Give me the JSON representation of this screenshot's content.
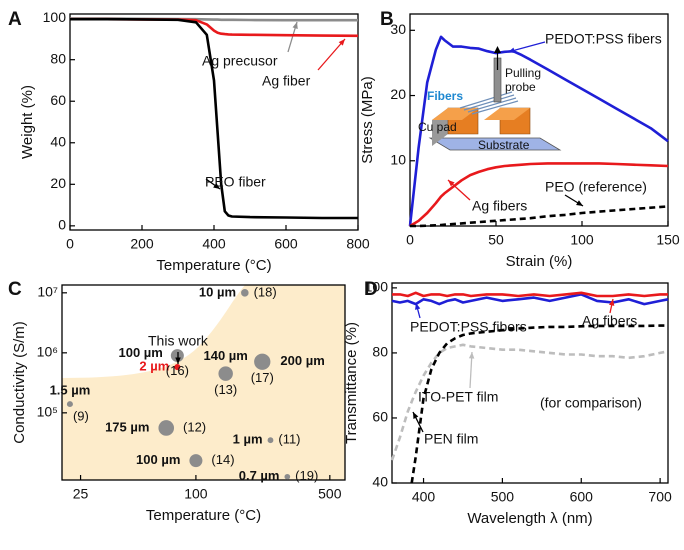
{
  "chart_data": [
    {
      "panel": "A",
      "type": "line",
      "xlabel": "Temperature (°C)",
      "ylabel": "Weight (%)",
      "x": [
        0,
        100,
        200,
        300,
        350,
        380,
        400,
        410,
        420,
        430,
        440,
        450,
        500,
        600,
        700,
        800
      ],
      "series": [
        {
          "name": "Ag precusor",
          "color": "#8c8c8c",
          "style": "solid",
          "values": [
            99.8,
            99.8,
            99.7,
            99.6,
            99.5,
            99.4,
            99.3,
            99.3,
            99.2,
            99.2,
            99.2,
            99.2,
            99.1,
            99.0,
            99.0,
            99.0
          ]
        },
        {
          "name": "Ag fiber",
          "color": "#e8191c",
          "style": "solid",
          "values": [
            99.5,
            99.5,
            99.4,
            99.3,
            99.0,
            97,
            94,
            93,
            92.5,
            92.3,
            92.2,
            92.1,
            92,
            91.8,
            91.6,
            91.5
          ]
        },
        {
          "name": "PEO fiber",
          "color": "#000000",
          "style": "solid",
          "values": [
            99.5,
            99.5,
            99.4,
            99.2,
            98,
            92,
            70,
            45,
            20,
            7,
            5,
            4.5,
            4.2,
            4,
            3.8,
            3.8
          ]
        }
      ],
      "xlim": [
        0,
        800
      ],
      "ylim": [
        -2,
        102
      ],
      "xticks": [
        0,
        200,
        400,
        600,
        800
      ],
      "yticks": [
        0,
        20,
        40,
        60,
        80,
        100
      ]
    },
    {
      "panel": "B",
      "type": "line",
      "xlabel": "Strain (%)",
      "ylabel": "Stress (MPa)",
      "x": [
        0,
        5,
        10,
        15,
        18,
        20,
        25,
        30,
        35,
        40,
        45,
        50,
        55,
        60,
        65,
        70,
        80,
        90,
        100,
        110,
        120,
        130,
        140,
        150
      ],
      "series": [
        {
          "name": "PEDOT:PSS fibers",
          "color": "#1f1fd6",
          "style": "solid",
          "values": [
            0,
            12,
            22,
            27,
            29,
            28.5,
            27.5,
            27.5,
            27.3,
            27.2,
            26.8,
            26.5,
            26.7,
            26.8,
            26.2,
            25.5,
            24,
            22.5,
            21,
            19.5,
            18,
            16.5,
            15,
            13
          ]
        },
        {
          "name": "Ag fibers",
          "color": "#e8191c",
          "style": "solid",
          "values": [
            0,
            0.8,
            2,
            3.5,
            4.5,
            5,
            6,
            7,
            7.8,
            8.3,
            8.7,
            9,
            9.2,
            9.3,
            9.4,
            9.5,
            9.6,
            9.6,
            9.6,
            9.6,
            9.5,
            9.4,
            9.3,
            9.2
          ]
        },
        {
          "name": "PEO (reference)",
          "color": "#000000",
          "style": "dashed",
          "values": [
            0,
            0,
            0.05,
            0.1,
            0.15,
            0.2,
            0.3,
            0.4,
            0.5,
            0.6,
            0.7,
            0.8,
            0.9,
            1.0,
            1.1,
            1.2,
            1.5,
            1.7,
            2.0,
            2.2,
            2.4,
            2.6,
            2.8,
            3.0
          ]
        }
      ],
      "xlim": [
        0,
        150
      ],
      "ylim": [
        0,
        32.5
      ],
      "xticks": [
        0,
        50,
        100,
        150
      ],
      "yticks": [
        10,
        20,
        30
      ],
      "inset_labels": [
        "Fibers",
        "Pulling",
        "probe",
        "Cu pad",
        "Substrate"
      ]
    },
    {
      "panel": "C",
      "type": "scatter",
      "xlabel": "Temperature (°C)",
      "ylabel": "Conductivity (S/m)",
      "x": [
        180,
        80,
        80,
        143,
        222,
        22,
        70,
        245,
        100,
        300
      ],
      "values": [
        10000000,
        580000,
        900000,
        450000,
        710000,
        140000,
        56000,
        35000,
        16000,
        8600
      ],
      "sizes": [
        10,
        2,
        100,
        140,
        200,
        1.5,
        175,
        1,
        100,
        0.7
      ],
      "size_labels": [
        "10 µm",
        "2 µm",
        "100 µm",
        "140 µm",
        "200 µm",
        "1.5 µm",
        "175 µm",
        "1 µm",
        "100 µm",
        "0.7 µm"
      ],
      "refs": [
        "(18)",
        null,
        "(16)",
        "(13)",
        "(17)",
        "(9)",
        "(12)",
        "(11)",
        "(14)",
        "(19)"
      ],
      "colors": [
        "#8c8c8c",
        "#e8191c",
        "#8c8c8c",
        "#8c8c8c",
        "#8c8c8c",
        "#8c8c8c",
        "#8c8c8c",
        "#8c8c8c",
        "#8c8c8c",
        "#8c8c8c"
      ],
      "annotation": "This work",
      "xlog": true,
      "ylog": true,
      "xlim": [
        20,
        600
      ],
      "ylim": [
        7600,
        13500000
      ],
      "xticks": [
        25,
        100,
        500
      ],
      "yticks": [
        {
          "value": 100000,
          "label": "10⁵"
        },
        {
          "value": 1000000,
          "label": "10⁶"
        },
        {
          "value": 10000000,
          "label": "10⁷"
        }
      ]
    },
    {
      "panel": "D",
      "type": "line",
      "xlabel": "Wavelength λ (nm)",
      "ylabel": "Transmittance (%)",
      "x": [
        360,
        370,
        380,
        385,
        390,
        400,
        410,
        420,
        430,
        440,
        450,
        460,
        480,
        500,
        520,
        540,
        560,
        580,
        600,
        620,
        640,
        660,
        680,
        700,
        710
      ],
      "series": [
        {
          "name": "PEDOT:PSS fibers",
          "color": "#1f1fd6",
          "style": "solid",
          "values": [
            96,
            95.5,
            96,
            95.5,
            95,
            96.5,
            96,
            95,
            96,
            96.5,
            95.5,
            96,
            97,
            96,
            96.5,
            97,
            96,
            97,
            98,
            96,
            95.5,
            96.5,
            95,
            96,
            96.5
          ]
        },
        {
          "name": "Ag fibers",
          "color": "#e8191c",
          "style": "solid",
          "values": [
            98,
            98,
            97.5,
            98,
            98.5,
            97.5,
            98,
            98,
            97.5,
            98,
            98,
            97.5,
            98,
            98,
            97.5,
            98,
            97.5,
            98,
            98.5,
            97.5,
            97.5,
            98,
            97.5,
            98,
            98
          ]
        },
        {
          "name": "ITO-PET film",
          "color": "#bdbdbd",
          "style": "dashed",
          "values": [
            47,
            54,
            62,
            65,
            68,
            73,
            77,
            80,
            81.5,
            82,
            82.5,
            82,
            81.5,
            81,
            81,
            80.5,
            80,
            79.5,
            79.5,
            79,
            79,
            78.5,
            79,
            80,
            80.5
          ]
        },
        {
          "name": "PEN film",
          "color": "#000000",
          "style": "dashed",
          "values": [
            null,
            null,
            null,
            40,
            48,
            66,
            75,
            80,
            83,
            84.5,
            85.5,
            86,
            86.5,
            87,
            87.5,
            87.8,
            88,
            88,
            88.2,
            88.3,
            88.3,
            88.3,
            88.3,
            88.4,
            88.4
          ]
        }
      ],
      "annotation": "(for comparison)",
      "xlim": [
        360,
        710
      ],
      "ylim": [
        40,
        101.5
      ],
      "xticks": [
        400,
        500,
        600,
        700
      ],
      "yticks": [
        40,
        60,
        80,
        100
      ]
    }
  ]
}
